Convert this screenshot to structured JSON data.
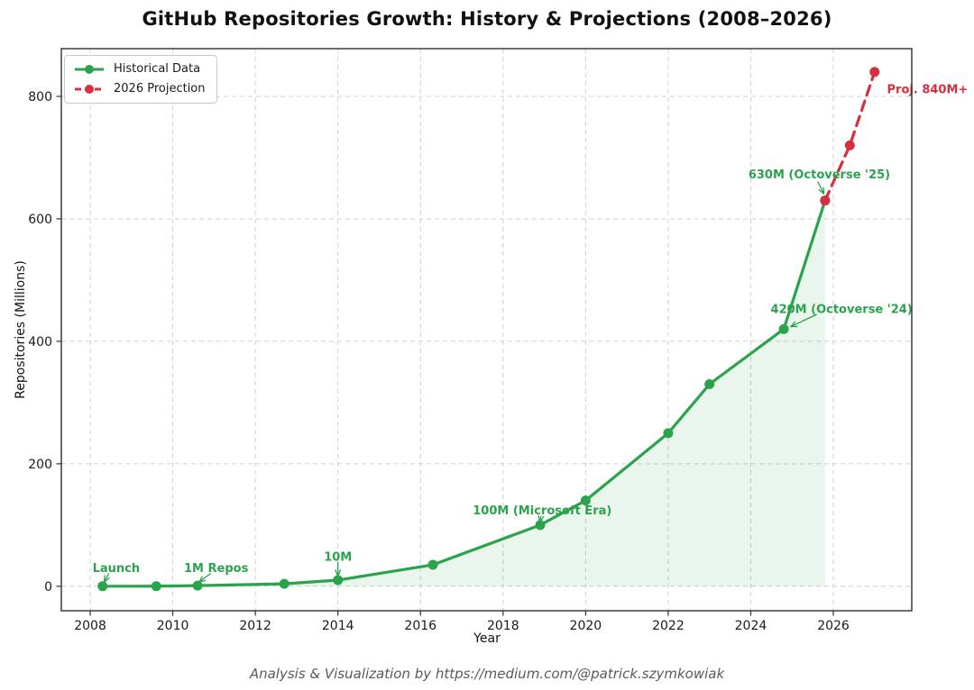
{
  "credit": "Analysis & Visualization by https://medium.com/@patrick.szymkowiak",
  "chart_data": {
    "type": "line",
    "title": "GitHub Repositories Growth: History & Projections (2008–2026)",
    "xlabel": "Year",
    "ylabel": "Repositories (Millions)",
    "xlim": [
      2007.3,
      2027.9
    ],
    "ylim": [
      -40,
      878
    ],
    "x_ticks": [
      2008,
      2010,
      2012,
      2014,
      2016,
      2018,
      2020,
      2022,
      2024,
      2026
    ],
    "y_ticks": [
      0,
      200,
      400,
      600,
      800
    ],
    "grid": true,
    "grid_style": "dashed",
    "grid_color": "#cfcfcf",
    "spine_color": "#2f2f2f",
    "tick_label_color": "#1a1a1a",
    "legend_position": "upper-left",
    "series": [
      {
        "name": "Historical Data",
        "color": "#2aa34c",
        "style": "solid",
        "marker": "circle",
        "fill_below": true,
        "fill_color": "rgba(46, 164, 79, 0.10)",
        "x": [
          2008.3,
          2009.6,
          2010.6,
          2012.7,
          2014,
          2016.3,
          2018.9,
          2020,
          2022,
          2023,
          2024.8,
          2025.8
        ],
        "y": [
          0,
          0.1,
          1,
          4,
          10,
          35,
          100,
          140,
          250,
          330,
          420,
          630
        ]
      },
      {
        "name": "2026 Projection",
        "color": "#d6303f",
        "style": "dashed",
        "marker": "circle",
        "fill_below": false,
        "x": [
          2025.8,
          2026.4,
          2027
        ],
        "y": [
          630,
          720,
          840
        ]
      }
    ],
    "annotations": [
      {
        "text": "Launch",
        "color": "#2aa34c",
        "target": [
          2008.3,
          0
        ],
        "text_at": [
          2008.63,
          30
        ],
        "arrow_from": [
          2008.45,
          21
        ],
        "arrow_to": [
          2008.34,
          7
        ],
        "anchor": "middle"
      },
      {
        "text": "1M Repos",
        "color": "#2aa34c",
        "target": [
          2010.6,
          1
        ],
        "text_at": [
          2011.05,
          30
        ],
        "arrow_from": [
          2010.92,
          21
        ],
        "arrow_to": [
          2010.64,
          7
        ],
        "anchor": "middle"
      },
      {
        "text": "10M",
        "color": "#2aa34c",
        "target": [
          2014,
          10
        ],
        "text_at": [
          2014.0,
          48
        ],
        "arrow_from": [
          2014.0,
          40
        ],
        "arrow_to": [
          2014.0,
          17
        ],
        "anchor": "middle"
      },
      {
        "text": "100M (Microsoft Era)",
        "color": "#2aa34c",
        "target": [
          2018.9,
          100
        ],
        "text_at": [
          2018.95,
          124
        ],
        "arrow_from": [
          2018.92,
          115
        ],
        "arrow_to": [
          2018.89,
          105
        ],
        "anchor": "middle"
      },
      {
        "text": "420M (Octoverse '24)",
        "color": "#2aa34c",
        "target": [
          2024.8,
          420
        ],
        "text_at": [
          2026.2,
          453
        ],
        "arrow_from": [
          2025.6,
          444
        ],
        "arrow_to": [
          2024.97,
          424
        ],
        "anchor": "middle"
      },
      {
        "text": "630M (Octoverse '25)",
        "color": "#2aa34c",
        "target": [
          2025.8,
          630
        ],
        "text_at": [
          2025.66,
          673
        ],
        "arrow_from": [
          2025.62,
          661
        ],
        "arrow_to": [
          2025.77,
          641
        ],
        "anchor": "middle"
      },
      {
        "text": "Proj. 840M+",
        "color": "#d6303f",
        "text_at": [
          2027.3,
          812
        ],
        "anchor": "start"
      }
    ]
  }
}
